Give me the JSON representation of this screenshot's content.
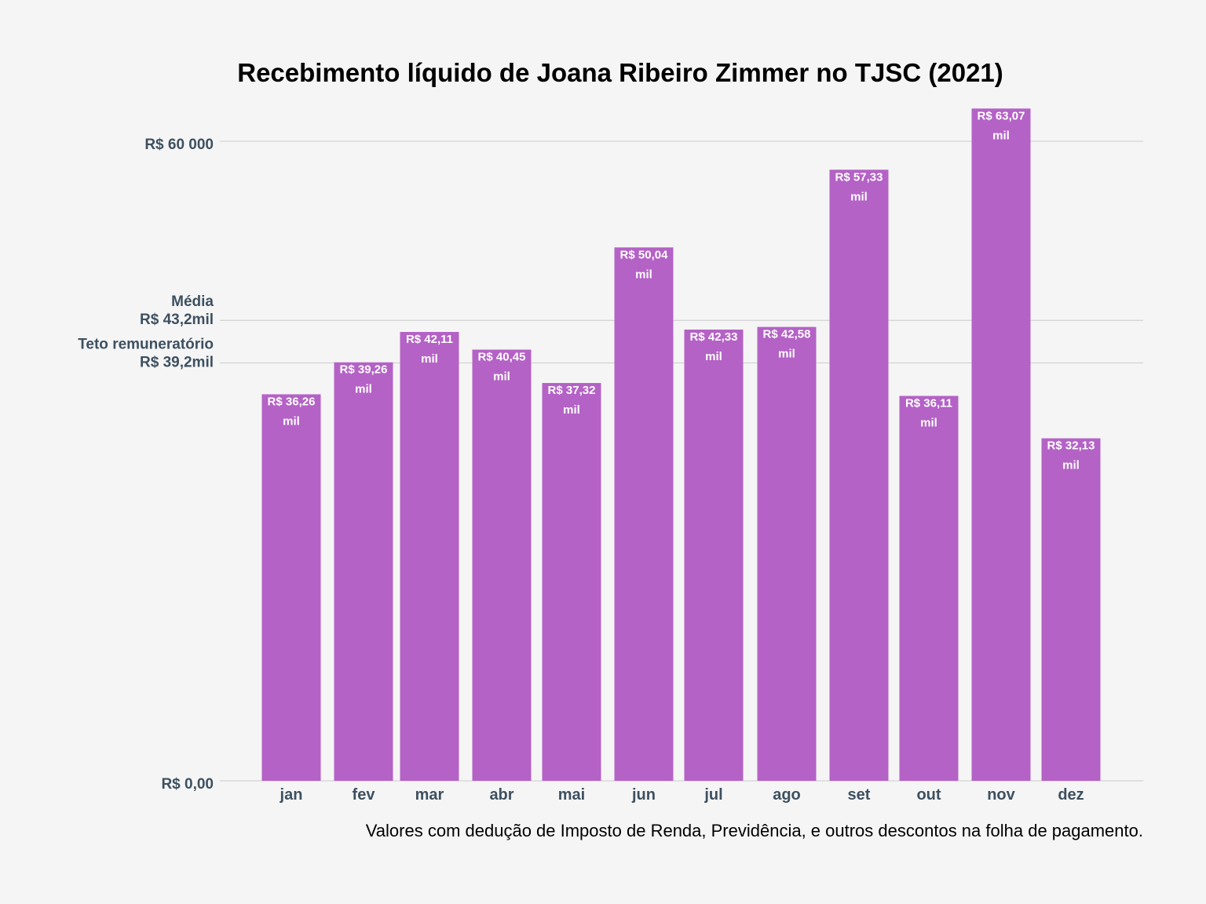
{
  "chart_data": {
    "type": "bar",
    "title": "Recebimento líquido de Joana Ribeiro Zimmer no TJSC (2021)",
    "caption": "Valores com dedução de Imposto de Renda, Previdência, e outros descontos na folha de pagamento.",
    "categories": [
      "jan",
      "fev",
      "mar",
      "abr",
      "mai",
      "jun",
      "jul",
      "ago",
      "set",
      "out",
      "nov",
      "dez"
    ],
    "values": [
      36260,
      39260,
      42110,
      40450,
      37320,
      50040,
      42330,
      42580,
      57330,
      36110,
      63070,
      32130
    ],
    "value_labels": [
      [
        "R$ 36,26",
        "mil"
      ],
      [
        "R$ 39,26",
        "mil"
      ],
      [
        "R$ 42,11",
        "mil"
      ],
      [
        "R$ 40,45",
        "mil"
      ],
      [
        "R$ 37,32",
        "mil"
      ],
      [
        "R$ 50,04",
        "mil"
      ],
      [
        "R$ 42,33",
        "mil"
      ],
      [
        "R$ 42,58",
        "mil"
      ],
      [
        "R$ 57,33",
        "mil"
      ],
      [
        "R$ 36,11",
        "mil"
      ],
      [
        "R$ 63,07",
        "mil"
      ],
      [
        "R$ 32,13",
        "mil"
      ]
    ],
    "ylim": [
      0,
      66000
    ],
    "reference_lines": [
      {
        "value": 0,
        "label": [
          "R$ 0,00"
        ]
      },
      {
        "value": 39200,
        "label": [
          "Teto remuneratório",
          "R$ 39,2mil"
        ]
      },
      {
        "value": 43200,
        "label": [
          "Média",
          "R$ 43,2mil"
        ]
      },
      {
        "value": 60000,
        "label": [
          "R$ 60 000"
        ]
      }
    ],
    "grid": true,
    "bar_color": "#b462c6",
    "grid_color": "#cccccc",
    "axis_text_color": "#3d5060",
    "background": "#f5f5f5"
  }
}
